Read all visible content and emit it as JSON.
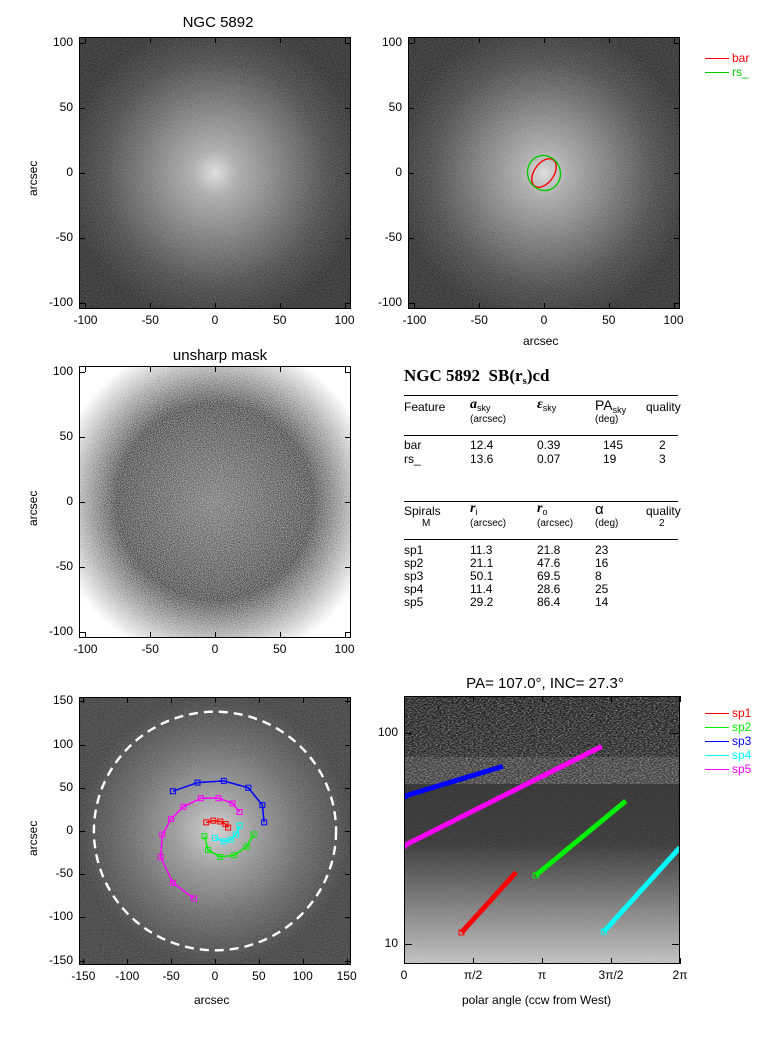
{
  "panel_titles": {
    "top_left": "NGC 5892",
    "mid_left": "unsharp mask",
    "bottom_right": "PA= 107.0°, INC=  27.3°"
  },
  "axis_labels": {
    "arcsec": "arcsec",
    "polar": "polar angle (ccw from West)"
  },
  "ticks": {
    "image_x": [
      "-100",
      "-50",
      "0",
      "50",
      "100"
    ],
    "image_y": [
      "100",
      "50",
      "0",
      "-50",
      "-100"
    ],
    "deproj_x": [
      "-150",
      "-100",
      "-50",
      "0",
      "50",
      "100",
      "150"
    ],
    "deproj_y": [
      "150",
      "100",
      "50",
      "0",
      "-50",
      "-100",
      "-150"
    ],
    "polar_x": [
      "0",
      "π/2",
      "π",
      "3π/2",
      "2π"
    ],
    "polar_y": [
      "100",
      "10"
    ]
  },
  "legend_top": [
    {
      "label": "bar",
      "color": "#ff0000"
    },
    {
      "label": "rs_",
      "color": "#00cc00"
    }
  ],
  "legend_bottom": [
    {
      "label": "sp1",
      "color": "#ff0000"
    },
    {
      "label": "sp2",
      "color": "#00ee00"
    },
    {
      "label": "sp3",
      "color": "#0000ff"
    },
    {
      "label": "sp4",
      "color": "#00ffff"
    },
    {
      "label": "sp5",
      "color": "#ff00ff"
    }
  ],
  "table": {
    "heading_name": "NGC 5892",
    "heading_class": "SB(r",
    "heading_class_sub": "s",
    "heading_class_tail": ")cd",
    "feature_header": {
      "col1": "Feature",
      "col2": "a",
      "col2_sub": "sky",
      "col2_unit": "(arcsec)",
      "col3": "ε",
      "col3_sub": "sky",
      "col4": "PA",
      "col4_sub": "sky",
      "col4_unit": "(deg)",
      "col5": "quality"
    },
    "feature_rows": [
      [
        "bar",
        "12.4",
        "0.39",
        "145",
        "2"
      ],
      [
        "rs_",
        "13.6",
        "0.07",
        "19",
        "3"
      ]
    ],
    "spiral_header": {
      "col1": "Spirals",
      "col1_sub": "M",
      "col2": "r",
      "col2_sub": "i",
      "col2_unit": "(arcsec)",
      "col3": "r",
      "col3_sub": "o",
      "col3_unit": "(arcsec)",
      "col4": "α",
      "col4_unit": "(deg)",
      "col5": "quality",
      "col5_val": "2"
    },
    "spiral_rows": [
      [
        "sp1",
        "11.3",
        "21.8",
        "23"
      ],
      [
        "sp2",
        "21.1",
        "47.6",
        "16"
      ],
      [
        "sp3",
        "50.1",
        "69.5",
        "8"
      ],
      [
        "sp4",
        "11.4",
        "28.6",
        "25"
      ],
      [
        "sp5",
        "29.2",
        "86.4",
        "14"
      ]
    ]
  },
  "chart_data": [
    {
      "type": "scatter",
      "title": "NGC 5892",
      "ylabel": "arcsec",
      "xlim": [
        -105,
        105
      ],
      "ylim": [
        -105,
        105
      ]
    },
    {
      "type": "scatter",
      "xlabel": "arcsec",
      "xlim": [
        -105,
        105
      ],
      "ylim": [
        -105,
        105
      ],
      "series": [
        {
          "name": "bar",
          "shape": "ellipse",
          "center": [
            0,
            0
          ],
          "a": 12.4,
          "ellipticity": 0.39,
          "pa_deg": 145
        },
        {
          "name": "rs_",
          "shape": "ellipse",
          "center": [
            0,
            0
          ],
          "a": 13.6,
          "ellipticity": 0.07,
          "pa_deg": 19
        }
      ]
    },
    {
      "type": "scatter",
      "title": "unsharp mask",
      "ylabel": "arcsec",
      "xlim": [
        -105,
        105
      ],
      "ylim": [
        -105,
        105
      ]
    },
    {
      "type": "line",
      "xlabel": "arcsec",
      "ylabel": "arcsec",
      "xlim": [
        -155,
        155
      ],
      "ylim": [
        -155,
        155
      ],
      "series": [
        {
          "name": "sp1",
          "points": [
            [
              -10,
              10
            ],
            [
              -2,
              12
            ],
            [
              6,
              11
            ],
            [
              12,
              8
            ],
            [
              15,
              4
            ]
          ]
        },
        {
          "name": "sp2",
          "points": [
            [
              -12,
              -6
            ],
            [
              -8,
              -22
            ],
            [
              6,
              -30
            ],
            [
              22,
              -28
            ],
            [
              36,
              -18
            ],
            [
              44,
              -4
            ]
          ]
        },
        {
          "name": "sp3",
          "points": [
            [
              -48,
              46
            ],
            [
              -20,
              56
            ],
            [
              10,
              58
            ],
            [
              38,
              50
            ],
            [
              54,
              30
            ],
            [
              56,
              10
            ]
          ]
        },
        {
          "name": "sp4",
          "points": [
            [
              0,
              -8
            ],
            [
              10,
              -12
            ],
            [
              18,
              -10
            ],
            [
              24,
              -4
            ],
            [
              28,
              6
            ]
          ]
        },
        {
          "name": "sp5",
          "points": [
            [
              -24,
              -78
            ],
            [
              -48,
              -60
            ],
            [
              -62,
              -30
            ],
            [
              -60,
              -4
            ],
            [
              -50,
              14
            ],
            [
              -36,
              28
            ],
            [
              -16,
              38
            ],
            [
              4,
              38
            ],
            [
              20,
              32
            ],
            [
              28,
              22
            ]
          ]
        },
        {
          "name": "outer-ellipse",
          "shape": "circle",
          "r": 138
        }
      ]
    },
    {
      "type": "line",
      "title": "PA= 107.0°, INC=  27.3°",
      "xlabel": "polar angle (ccw from West)",
      "xlim": [
        0,
        6.2832
      ],
      "ylim": [
        8,
        150
      ],
      "yscale": "log",
      "series": [
        {
          "name": "sp1",
          "x": [
            1.31,
            2.55
          ],
          "y": [
            11.3,
            21.8
          ]
        },
        {
          "name": "sp2",
          "x": [
            3.0,
            5.05
          ],
          "y": [
            21.1,
            47.6
          ]
        },
        {
          "name": "sp3",
          "x": [
            0.0,
            2.25
          ],
          "y": [
            50.1,
            69.5
          ]
        },
        {
          "name": "sp4",
          "x": [
            4.55,
            6.28
          ],
          "y": [
            11.4,
            28.6
          ]
        },
        {
          "name": "sp5",
          "x": [
            0.0,
            4.5
          ],
          "y": [
            29.2,
            86.4
          ]
        }
      ]
    }
  ]
}
